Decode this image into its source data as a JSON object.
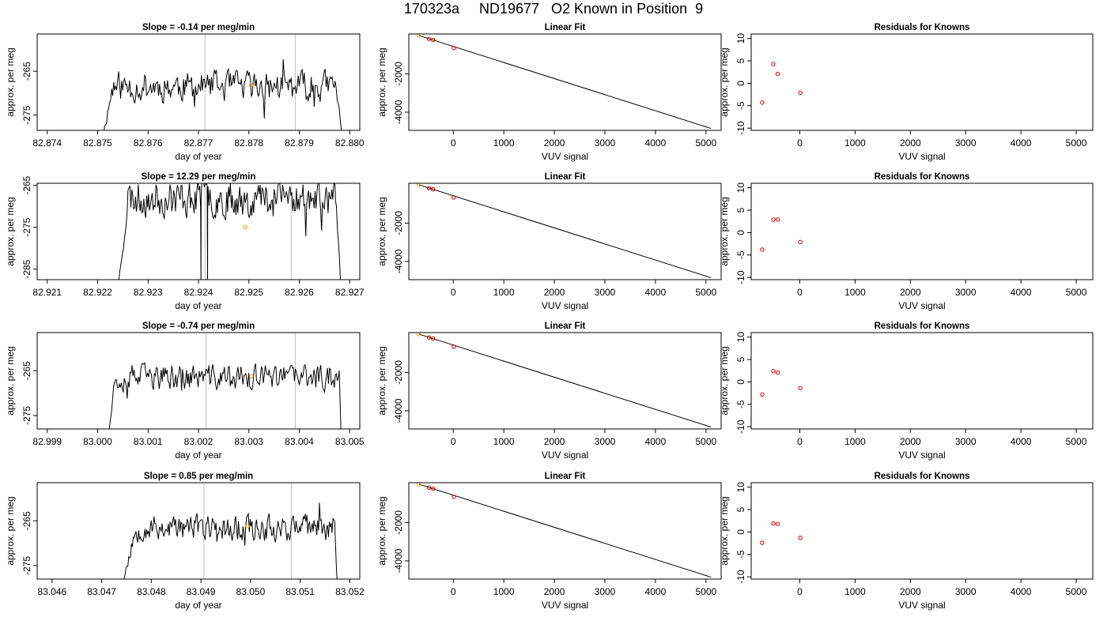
{
  "figure": {
    "suptitle": "170323a     ND19677   O2 Known in Position  9",
    "colors": {
      "trace": "#000000",
      "marker_orange": "#ffa500",
      "marker_red": "#cd0000",
      "vline": "#c8c8c8",
      "axis": "#000000"
    }
  },
  "chart_data": [
    {
      "type": "line",
      "row": 1,
      "title": "Slope =  -0.14  per meg/min",
      "xlabel": "day of year",
      "ylabel": "approx. per meg",
      "xlim": [
        82.8738,
        82.8802
      ],
      "ylim": [
        -278.5,
        -256.5
      ],
      "xticks": [
        "82.874",
        "82.875",
        "82.876",
        "82.877",
        "82.878",
        "82.879",
        "82.880"
      ],
      "yticks": [
        "-265",
        "-275"
      ],
      "vlines": [
        82.87713,
        82.87892
      ],
      "marker": {
        "x": 82.87804,
        "y": -268.2,
        "color": "orange"
      },
      "trace": {
        "start": 82.8751,
        "end": 82.87985,
        "base": -268.5,
        "drop_to": -280,
        "rise": 0.0002,
        "fall": 0.00012,
        "amp": 2.2,
        "seed": 11
      }
    },
    {
      "type": "scatter",
      "row": 1,
      "title": "Linear Fit",
      "xlabel": "VUV signal",
      "ylabel": "approx. per meg",
      "xlim": [
        -880,
        5300
      ],
      "ylim": [
        -4950,
        80
      ],
      "xticks": [
        "0",
        "1000",
        "2000",
        "3000",
        "4000",
        "5000"
      ],
      "yticks": [
        "-2000",
        "-4000"
      ],
      "points": [
        [
          -680,
          0
        ],
        [
          -480,
          -175
        ],
        [
          -400,
          -232
        ],
        [
          10,
          -653
        ]
      ],
      "fit_line": [
        [
          -680,
          0
        ],
        [
          5100,
          -4850
        ]
      ]
    },
    {
      "type": "scatter",
      "row": 1,
      "title": "Residuals for Knowns",
      "xlabel": "VUV signal",
      "ylabel": "approx. per meg",
      "xlim": [
        -880,
        5300
      ],
      "ylim": [
        -10.5,
        11
      ],
      "xticks": [
        "0",
        "1000",
        "2000",
        "3000",
        "4000",
        "5000"
      ],
      "yticks": [
        "-10",
        "-5",
        "0",
        "5",
        "10"
      ],
      "points": [
        [
          -680,
          -4.3
        ],
        [
          -480,
          4.3
        ],
        [
          -400,
          2.1
        ],
        [
          10,
          -2.1
        ]
      ]
    },
    {
      "type": "line",
      "row": 2,
      "title": "Slope =  12.29  per meg/min",
      "xlabel": "day of year",
      "ylabel": "approx. per meg",
      "xlim": [
        82.9208,
        82.9272
      ],
      "ylim": [
        -287.5,
        -264.5
      ],
      "xticks": [
        "82.921",
        "82.922",
        "82.923",
        "82.924",
        "82.925",
        "82.926",
        "82.927"
      ],
      "yticks": [
        "-265",
        "-275",
        "-285"
      ],
      "vlines": [
        82.92413,
        82.92584
      ],
      "marker": {
        "x": 82.92493,
        "y": -275.0,
        "color": "orange"
      },
      "trace": {
        "start": 82.9224,
        "end": 82.92683,
        "base": -268.0,
        "drop_to": -290,
        "rise": 0.0002,
        "fall": 0.00012,
        "amp": 2.8,
        "seed": 23,
        "spikes": [
          [
            82.92405,
            -289
          ],
          [
            82.92418,
            -289
          ]
        ]
      }
    },
    {
      "type": "scatter",
      "row": 2,
      "title": "Linear Fit",
      "xlabel": "VUV signal",
      "ylabel": "approx. per meg",
      "xlim": [
        -880,
        5300
      ],
      "ylim": [
        -4950,
        80
      ],
      "xticks": [
        "0",
        "1000",
        "2000",
        "3000",
        "4000",
        "5000"
      ],
      "yticks": [
        "-2000",
        "-4000"
      ],
      "points": [
        [
          -680,
          0
        ],
        [
          -480,
          -175
        ],
        [
          -400,
          -232
        ],
        [
          10,
          -653
        ]
      ],
      "fit_line": [
        [
          -680,
          0
        ],
        [
          5100,
          -4850
        ]
      ]
    },
    {
      "type": "scatter",
      "row": 2,
      "title": "Residuals for Knowns",
      "xlabel": "VUV signal",
      "ylabel": "approx. per meg",
      "xlim": [
        -880,
        5300
      ],
      "ylim": [
        -10.5,
        11
      ],
      "xticks": [
        "0",
        "1000",
        "2000",
        "3000",
        "4000",
        "5000"
      ],
      "yticks": [
        "-10",
        "-5",
        "0",
        "5",
        "10"
      ],
      "points": [
        [
          -680,
          -3.8
        ],
        [
          -480,
          2.9
        ],
        [
          -400,
          2.9
        ],
        [
          10,
          -2.1
        ]
      ]
    },
    {
      "type": "line",
      "row": 3,
      "title": "Slope =  -0.74  per meg/min",
      "xlabel": "day of year",
      "ylabel": "approx. per meg",
      "xlim": [
        82.9988,
        83.0052
      ],
      "ylim": [
        -278,
        -256.5
      ],
      "xticks": [
        "82.999",
        "83.000",
        "83.001",
        "83.002",
        "83.003",
        "83.004",
        "83.005"
      ],
      "yticks": [
        "-265",
        "-275"
      ],
      "vlines": [
        83.00215,
        83.00392
      ],
      "marker": {
        "x": 83.00305,
        "y": -266.3,
        "color": "orange"
      },
      "trace": {
        "start": 83.0002,
        "end": 83.00483,
        "base": -266.5,
        "drop_to": -280,
        "rise": 0.00015,
        "fall": 4e-05,
        "amp": 1.8,
        "seed": 37
      }
    },
    {
      "type": "scatter",
      "row": 3,
      "title": "Linear Fit",
      "xlabel": "VUV signal",
      "ylabel": "approx. per meg",
      "xlim": [
        -880,
        5300
      ],
      "ylim": [
        -4950,
        80
      ],
      "xticks": [
        "0",
        "1000",
        "2000",
        "3000",
        "4000",
        "5000"
      ],
      "yticks": [
        "-2000",
        "-4000"
      ],
      "points": [
        [
          -680,
          0
        ],
        [
          -480,
          -175
        ],
        [
          -400,
          -232
        ],
        [
          10,
          -653
        ]
      ],
      "fit_line": [
        [
          -680,
          0
        ],
        [
          5100,
          -4850
        ]
      ]
    },
    {
      "type": "scatter",
      "row": 3,
      "title": "Residuals for Knowns",
      "xlabel": "VUV signal",
      "ylabel": "approx. per meg",
      "xlim": [
        -880,
        5300
      ],
      "ylim": [
        -10.5,
        11
      ],
      "xticks": [
        "0",
        "1000",
        "2000",
        "3000",
        "4000",
        "5000"
      ],
      "yticks": [
        "-10",
        "-5",
        "0",
        "5",
        "10"
      ],
      "points": [
        [
          -680,
          -2.8
        ],
        [
          -480,
          2.4
        ],
        [
          -400,
          2.1
        ],
        [
          10,
          -1.4
        ]
      ]
    },
    {
      "type": "line",
      "row": 4,
      "title": "Slope =  0.85  per meg/min",
      "xlabel": "day of year",
      "ylabel": "approx. per meg",
      "xlim": [
        83.0457,
        83.0522
      ],
      "ylim": [
        -278,
        -256.5
      ],
      "xticks": [
        "83.046",
        "83.047",
        "83.048",
        "83.049",
        "83.050",
        "83.051",
        "83.052"
      ],
      "yticks": [
        "-265",
        "-275"
      ],
      "vlines": [
        83.04906,
        83.05082
      ],
      "marker": {
        "x": 83.04994,
        "y": -266.2,
        "color": "orange"
      },
      "trace": {
        "start": 83.0474,
        "end": 83.05175,
        "base": -266.5,
        "drop_to": -280,
        "rise": 0.0003,
        "fall": 6e-05,
        "amp": 1.8,
        "seed": 53
      }
    },
    {
      "type": "scatter",
      "row": 4,
      "title": "Linear Fit",
      "xlabel": "VUV signal",
      "ylabel": "approx. per meg",
      "xlim": [
        -880,
        5300
      ],
      "ylim": [
        -4950,
        80
      ],
      "xticks": [
        "0",
        "1000",
        "2000",
        "3000",
        "4000",
        "5000"
      ],
      "yticks": [
        "-2000",
        "-4000"
      ],
      "points": [
        [
          -680,
          0
        ],
        [
          -480,
          -175
        ],
        [
          -400,
          -232
        ],
        [
          10,
          -653
        ]
      ],
      "fit_line": [
        [
          -680,
          0
        ],
        [
          5100,
          -4850
        ]
      ]
    },
    {
      "type": "scatter",
      "row": 4,
      "title": "Residuals for Knowns",
      "xlabel": "VUV signal",
      "ylabel": "approx. per meg",
      "xlim": [
        -880,
        5300
      ],
      "ylim": [
        -10.5,
        11
      ],
      "xticks": [
        "0",
        "1000",
        "2000",
        "3000",
        "4000",
        "5000"
      ],
      "yticks": [
        "-10",
        "-5",
        "0",
        "5",
        "10"
      ],
      "points": [
        [
          -680,
          -2.4
        ],
        [
          -480,
          1.9
        ],
        [
          -400,
          1.8
        ],
        [
          10,
          -1.3
        ]
      ]
    }
  ]
}
